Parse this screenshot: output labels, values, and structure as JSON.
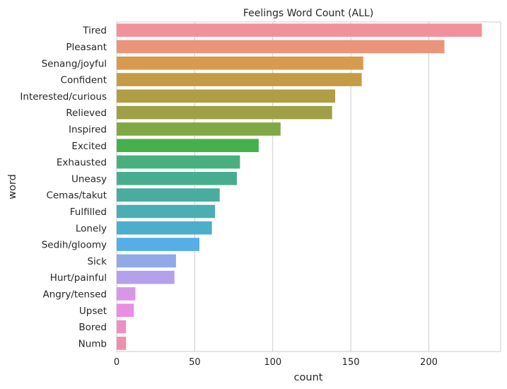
{
  "chart_data": {
    "type": "bar",
    "orientation": "horizontal",
    "title": "Feelings Word Count (ALL)",
    "xlabel": "count",
    "ylabel": "word",
    "xlim": [
      0,
      246
    ],
    "xticks": [
      0,
      50,
      100,
      150,
      200
    ],
    "grid": "vertical",
    "categories": [
      "Tired",
      "Pleasant",
      "Senang/joyful",
      "Confident",
      "Interested/curious",
      "Relieved",
      "Inspired",
      "Excited",
      "Exhausted",
      "Uneasy",
      "Cemas/takut",
      "Fulfilled",
      "Lonely",
      "Sedih/gloomy",
      "Sick",
      "Hurt/painful",
      "Angry/tensed",
      "Upset",
      "Bored",
      "Numb"
    ],
    "values": [
      234,
      210,
      158,
      157,
      140,
      138,
      105,
      91,
      79,
      77,
      66,
      63,
      61,
      53,
      38,
      37,
      12,
      11,
      6,
      6
    ],
    "colors": [
      "#f0919c",
      "#ea957a",
      "#d89a4e",
      "#c49c45",
      "#b09e45",
      "#9fa045",
      "#81a845",
      "#45b04b",
      "#48b07f",
      "#48ad8f",
      "#4aab9f",
      "#4aaeb2",
      "#4caec8",
      "#55aee6",
      "#92a9e8",
      "#b5a0eb",
      "#d896e8",
      "#e98ee2",
      "#ec8fc4",
      "#ee90ab"
    ]
  }
}
